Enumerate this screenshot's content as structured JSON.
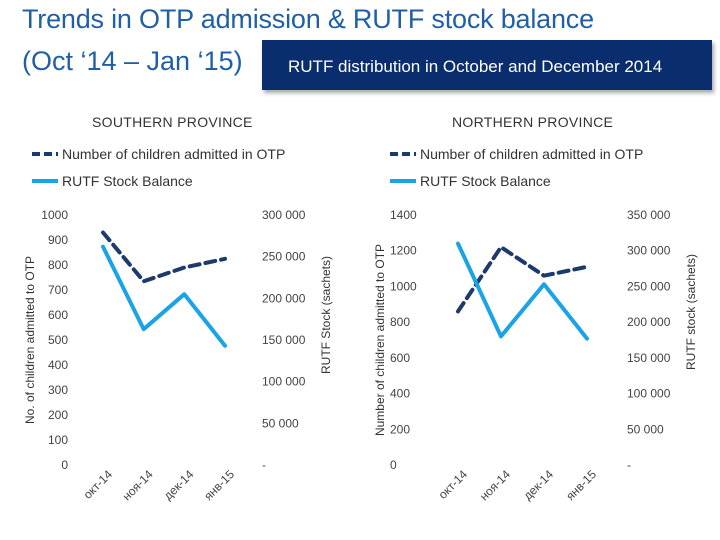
{
  "header": {
    "title": "Trends in OTP admission & RUTF stock balance",
    "subtitle": "(Oct ‘14 – Jan ‘15)",
    "banner": "RUTF distribution in October and December 2014"
  },
  "colors": {
    "title": "#1f5fa8",
    "banner_bg": "#0a2d6e",
    "admitted_series": "#1c3a6b",
    "stock_series": "#1aa3e6"
  },
  "chart_data": [
    {
      "type": "line",
      "title": "SOUTHERN PROVINCE",
      "categories": [
        "окт-14",
        "ноя-14",
        "дек-14",
        "янв-15"
      ],
      "series": [
        {
          "name": "Number of children admitted in OTP",
          "axis": "left",
          "style": "dashed",
          "values": [
            930,
            735,
            790,
            825
          ]
        },
        {
          "name": "RUTF Stock Balance",
          "axis": "right",
          "style": "solid",
          "values": [
            262000,
            163000,
            205000,
            143000
          ]
        }
      ],
      "ylabel_left": "No. of children admitted to OTP",
      "ylabel_right": "RUTF Stock (sachets)",
      "ylim_left": [
        0,
        1000
      ],
      "ylim_right": [
        0,
        300000
      ],
      "yticks_left": [
        "0",
        "100",
        "200",
        "300",
        "400",
        "500",
        "600",
        "700",
        "800",
        "900",
        "1000"
      ],
      "yticks_right": [
        "-",
        "50 000",
        "100 000",
        "150 000",
        "200 000",
        "250 000",
        "300 000"
      ],
      "legend": "top"
    },
    {
      "type": "line",
      "title": "NORTHERN PROVINCE",
      "categories": [
        "окт-14",
        "ноя-14",
        "дек-14",
        "янв-15"
      ],
      "series": [
        {
          "name": "Number of children admitted in OTP",
          "axis": "left",
          "style": "dashed",
          "values": [
            860,
            1220,
            1060,
            1110
          ]
        },
        {
          "name": "RUTF Stock Balance",
          "axis": "right",
          "style": "solid",
          "values": [
            310000,
            180000,
            253000,
            177000
          ]
        }
      ],
      "ylabel_left": "Number of children admitted to OTP",
      "ylabel_right": "RUTF stock (sachets)",
      "ylim_left": [
        0,
        1400
      ],
      "ylim_right": [
        0,
        350000
      ],
      "yticks_left": [
        "0",
        "200",
        "400",
        "600",
        "800",
        "1000",
        "1200",
        "1400"
      ],
      "yticks_right": [
        "-",
        "50 000",
        "100 000",
        "150 000",
        "200 000",
        "250 000",
        "300 000",
        "350 000"
      ],
      "legend": "top"
    }
  ]
}
